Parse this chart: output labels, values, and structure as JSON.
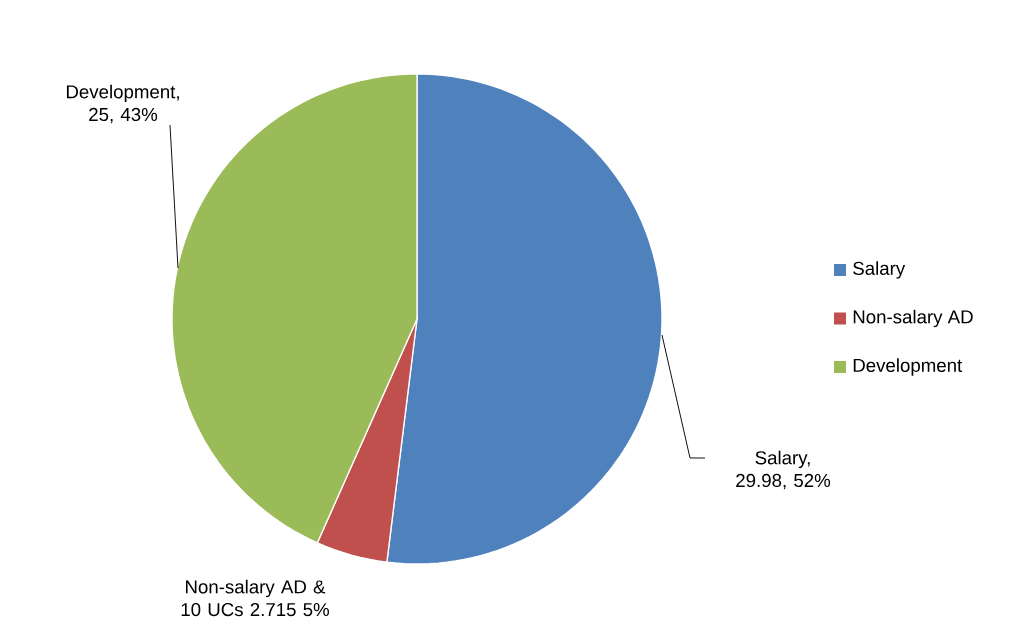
{
  "chart_data": {
    "type": "pie",
    "categories": [
      "Salary",
      "Non-salary AD",
      "Development"
    ],
    "values": [
      29.98,
      2.715,
      25
    ],
    "colors": [
      "#4f81bd",
      "#c0504d",
      "#9bbb59"
    ],
    "value_labels": [
      "Salary, 29.98, 52%",
      "Non-salary AD & 10 UCs 2.715 5%",
      "Development, 25, 43%"
    ],
    "legend": "right"
  }
}
